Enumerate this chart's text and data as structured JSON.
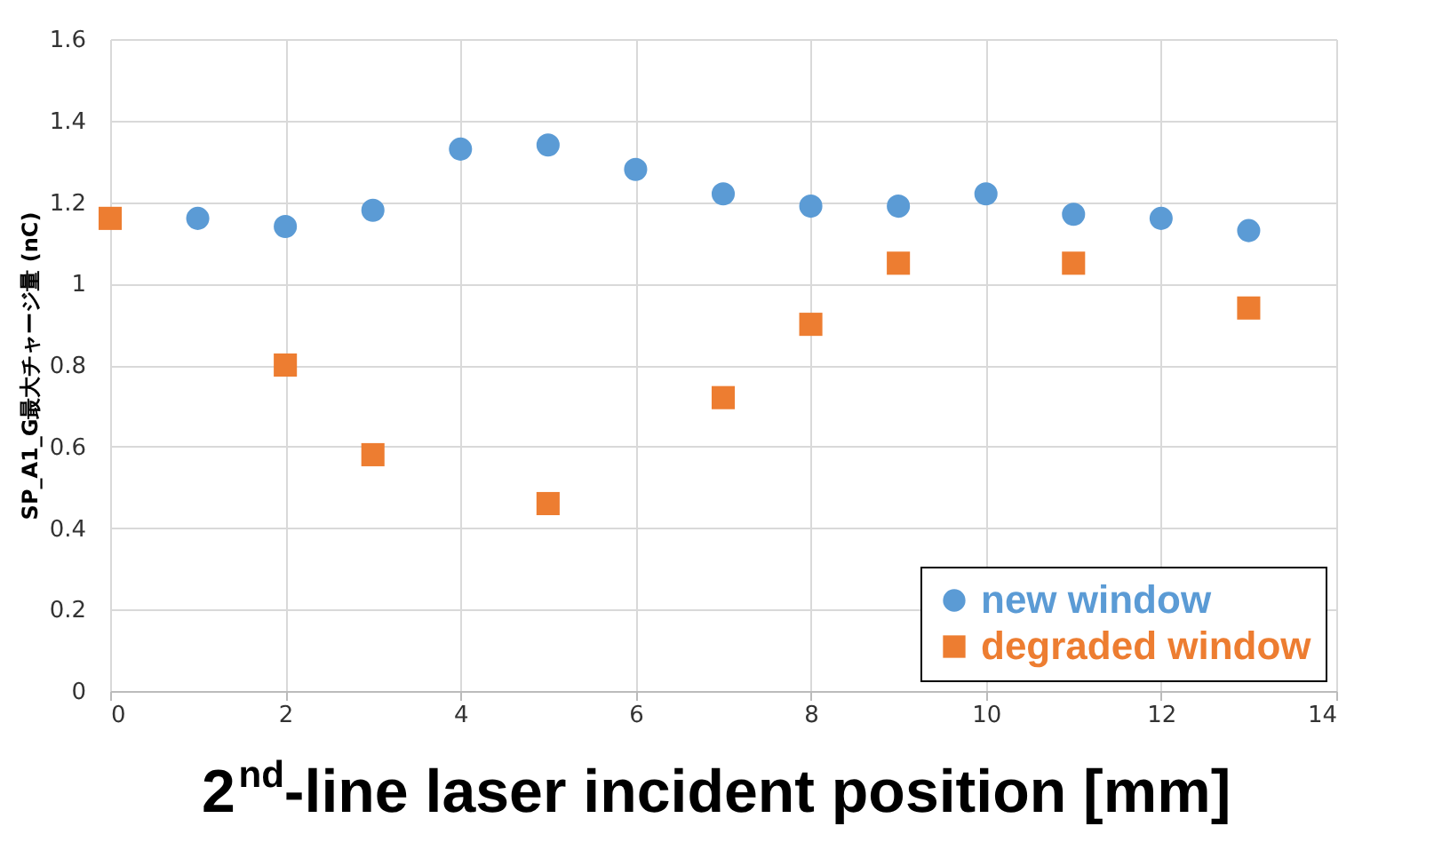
{
  "chart_data": {
    "type": "scatter",
    "xlabel": "2$^{nd}$-line laser incident position [mm]",
    "ylabel": "SP_A1_G最大チャージ量 (nC)",
    "xlim": [
      0,
      14
    ],
    "xticks": [
      0,
      2,
      4,
      6,
      8,
      10,
      12,
      14
    ],
    "ylim": [
      0,
      1.6
    ],
    "yticks": [
      0,
      0.2,
      0.4,
      0.6,
      0.8,
      1,
      1.2,
      1.4,
      1.6
    ],
    "grid": true,
    "legend": "bottom right",
    "series": [
      {
        "name": "new window",
        "color": "#5b9bd5",
        "marker": "circle",
        "x": [
          1,
          2,
          3,
          4,
          5,
          6,
          7,
          8,
          9,
          10,
          11,
          12,
          13
        ],
        "values": [
          1.16,
          1.14,
          1.18,
          1.33,
          1.34,
          1.28,
          1.22,
          1.19,
          1.19,
          1.22,
          1.17,
          1.16,
          1.13
        ]
      },
      {
        "name": "degraded window",
        "color": "#ed7d31",
        "marker": "square",
        "x": [
          0,
          2,
          3,
          5,
          7,
          8,
          9,
          11,
          13
        ],
        "values": [
          1.16,
          0.8,
          0.58,
          0.46,
          0.72,
          0.9,
          1.05,
          1.05,
          0.94
        ]
      }
    ]
  }
}
